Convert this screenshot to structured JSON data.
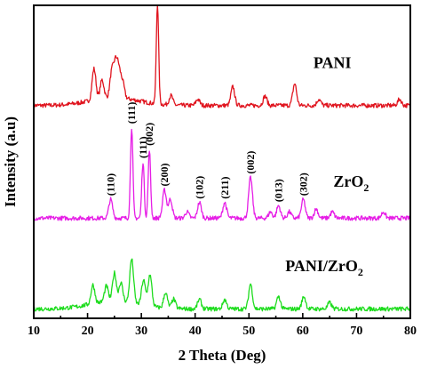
{
  "chart_data": {
    "type": "line",
    "xlabel": "2 Theta (Deg)",
    "ylabel": "Intensity (a.u)",
    "xlim": [
      10,
      80
    ],
    "xticks": [
      10,
      20,
      30,
      40,
      50,
      60,
      70,
      80
    ],
    "yticks_shown": false,
    "grid": false,
    "legend": "none",
    "y_units": "arbitrary, stacked traces",
    "series": [
      {
        "name": "PANI",
        "color": "#e0141e",
        "offset": 0.68,
        "peaks": [
          [
            21.2,
            0.1
          ],
          [
            22.7,
            0.06
          ],
          [
            24.5,
            0.08
          ],
          [
            25.2,
            0.1
          ],
          [
            25.8,
            0.08
          ],
          [
            26.5,
            0.05
          ],
          [
            33.0,
            0.32
          ],
          [
            35.5,
            0.03
          ],
          [
            40.5,
            0.02
          ],
          [
            47.0,
            0.06
          ],
          [
            53.0,
            0.03
          ],
          [
            58.5,
            0.07
          ],
          [
            63.0,
            0.02
          ],
          [
            78.0,
            0.02
          ]
        ]
      },
      {
        "name": "ZrO",
        "name_subscript": "2",
        "color": "#e61ee6",
        "offset": 0.32,
        "peaks": [
          [
            24.3,
            0.06
          ],
          [
            28.2,
            0.29
          ],
          [
            30.3,
            0.18
          ],
          [
            31.5,
            0.22
          ],
          [
            34.3,
            0.09
          ],
          [
            35.4,
            0.06
          ],
          [
            38.5,
            0.02
          ],
          [
            40.8,
            0.05
          ],
          [
            45.5,
            0.05
          ],
          [
            50.3,
            0.13
          ],
          [
            54.0,
            0.02
          ],
          [
            55.5,
            0.04
          ],
          [
            57.5,
            0.02
          ],
          [
            60.1,
            0.06
          ],
          [
            62.5,
            0.03
          ],
          [
            65.5,
            0.02
          ],
          [
            75.0,
            0.02
          ]
        ]
      },
      {
        "name": "PANI/ZrO",
        "name_subscript": "2",
        "color": "#1edc1e",
        "offset": 0.03,
        "peaks": [
          [
            21.0,
            0.06
          ],
          [
            23.5,
            0.05
          ],
          [
            25.0,
            0.09
          ],
          [
            26.2,
            0.06
          ],
          [
            28.2,
            0.14
          ],
          [
            30.4,
            0.08
          ],
          [
            31.6,
            0.1
          ],
          [
            34.5,
            0.05
          ],
          [
            36.0,
            0.03
          ],
          [
            40.8,
            0.03
          ],
          [
            45.5,
            0.03
          ],
          [
            50.3,
            0.08
          ],
          [
            55.5,
            0.04
          ],
          [
            60.2,
            0.04
          ],
          [
            65.0,
            0.02
          ]
        ]
      }
    ],
    "peak_labels": [
      {
        "text": "(110)",
        "x": 24.3
      },
      {
        "text": "(111)",
        "x": 28.2
      },
      {
        "text": "(111)",
        "x": 30.3
      },
      {
        "text": "(002)",
        "x": 31.5
      },
      {
        "text": "(200)",
        "x": 34.3
      },
      {
        "text": "(102)",
        "x": 40.8
      },
      {
        "text": "(211)",
        "x": 45.5
      },
      {
        "text": "(002)",
        "x": 50.3
      },
      {
        "text": "(013)",
        "x": 55.5
      },
      {
        "text": "(302)",
        "x": 60.1
      }
    ]
  }
}
